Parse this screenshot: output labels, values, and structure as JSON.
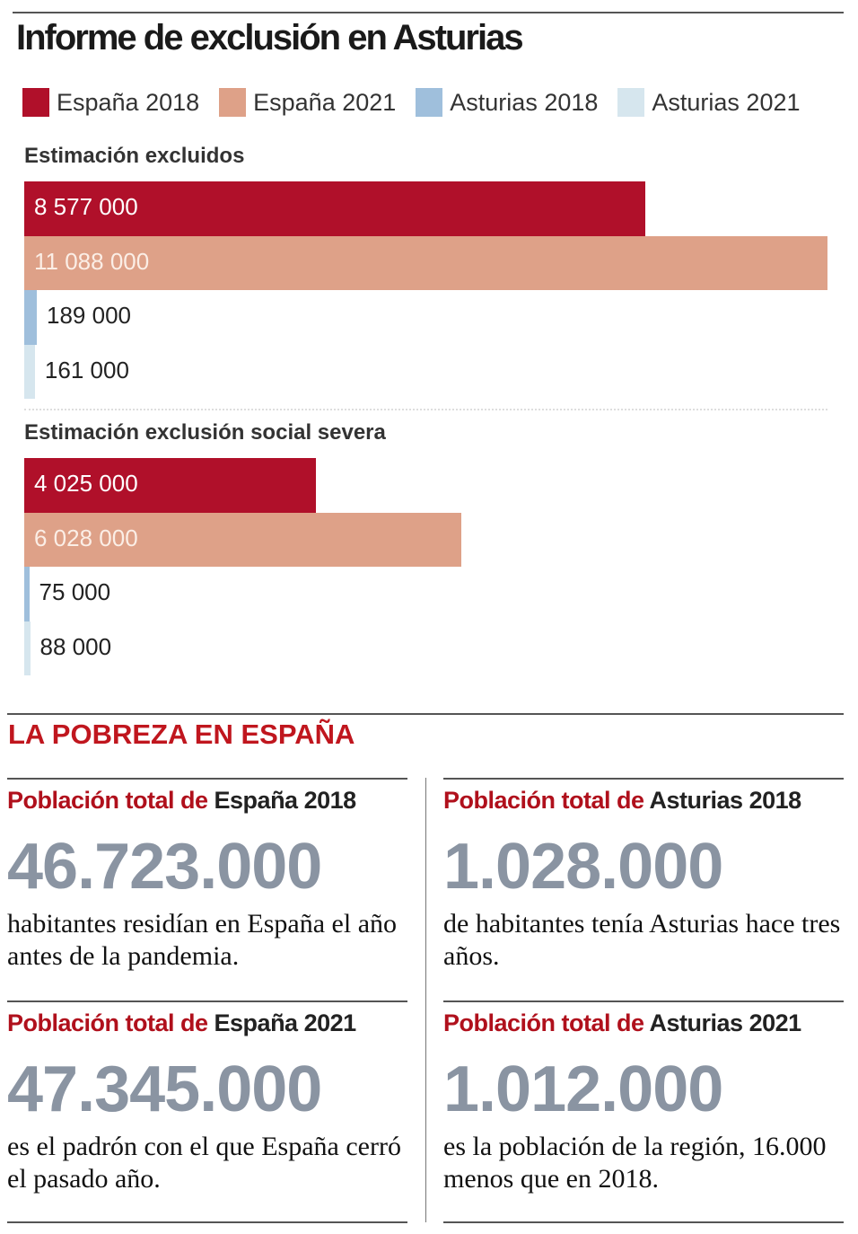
{
  "title": "Informe de exclusión en Asturias",
  "colors": {
    "espana_2018": "#b0102a",
    "espana_2021": "#dea188",
    "asturias_2018": "#9fbfdc",
    "asturias_2021": "#d6e6ee"
  },
  "chart_data": {
    "type": "bar",
    "orientation": "horizontal",
    "legend": [
      "España 2018",
      "España 2021",
      "Asturias 2018",
      "Asturias 2021"
    ],
    "legend_position": "top",
    "groups": [
      {
        "title": "Estimación excluidos",
        "values": [
          8577000,
          11088000,
          189000,
          161000
        ],
        "labels": [
          "8 577 000",
          "11 088 000",
          "189 000",
          "161 000"
        ]
      },
      {
        "title": "Estimación exclusión social severa",
        "values": [
          4025000,
          6028000,
          75000,
          88000
        ],
        "labels": [
          "4 025 000",
          "6 028 000",
          "75 000",
          "88 000"
        ]
      }
    ]
  },
  "section": {
    "title": "LA POBREZA EN ESPAÑA",
    "cards": [
      {
        "prefix": "Población total de ",
        "subject": "España 2018",
        "value": "46.723.000",
        "desc": "habitantes residían en España el año antes de la pandemia."
      },
      {
        "prefix": "Población total de ",
        "subject": "Asturias 2018",
        "value": "1.028.000",
        "desc": "de habitantes tenía Asturias hace tres años."
      },
      {
        "prefix": "Población total de ",
        "subject": "España 2021",
        "value": "47.345.000",
        "desc": "es el padrón con el que España cerró el pasado año."
      },
      {
        "prefix": "Población total de ",
        "subject": "Asturias 2021",
        "value": "1.012.000",
        "desc": "es la población de la región, 16.000 menos que en 2018."
      }
    ]
  }
}
